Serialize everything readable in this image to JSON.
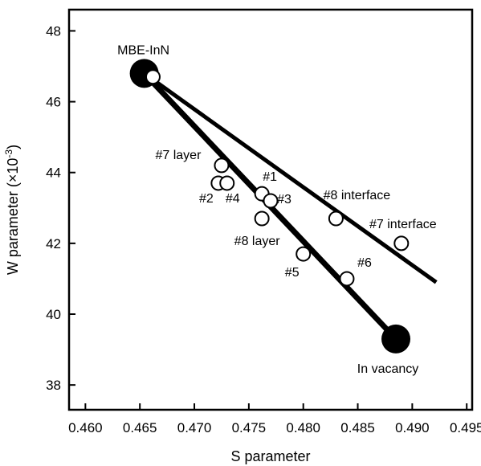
{
  "chart_data": {
    "type": "scatter",
    "xlabel": "S parameter",
    "ylabel": "W parameter (×10",
    "ylabel_exponent": "-3",
    "ylabel_close": ")",
    "xlim": [
      0.4585,
      0.4955
    ],
    "ylim": [
      37.3,
      48.6
    ],
    "xticks": [
      "0.460",
      "0.465",
      "0.470",
      "0.475",
      "0.480",
      "0.485",
      "0.490",
      "0.495"
    ],
    "xtick_values": [
      0.46,
      0.465,
      0.47,
      0.475,
      0.48,
      0.485,
      0.49,
      0.495
    ],
    "yticks": [
      "38",
      "40",
      "42",
      "44",
      "46",
      "48"
    ],
    "ytick_values": [
      38,
      40,
      42,
      44,
      46,
      48
    ],
    "grid": false,
    "reference_points": [
      {
        "label": "MBE-InN",
        "x": 0.4654,
        "y": 46.8
      },
      {
        "label": "In vacancy",
        "x": 0.4885,
        "y": 39.3
      }
    ],
    "samples": [
      {
        "label": "#7 layer",
        "x": 0.4725,
        "y": 44.2
      },
      {
        "label": "#2",
        "x": 0.4722,
        "y": 43.7
      },
      {
        "label": "#4",
        "x": 0.473,
        "y": 43.7
      },
      {
        "label": "#1",
        "x": 0.4762,
        "y": 43.4
      },
      {
        "label": "#3",
        "x": 0.477,
        "y": 43.2
      },
      {
        "label": "#8 layer",
        "x": 0.4762,
        "y": 42.7
      },
      {
        "label": "#5",
        "x": 0.48,
        "y": 41.7
      },
      {
        "label": "#6",
        "x": 0.484,
        "y": 41.0
      },
      {
        "label": "#8 interface",
        "x": 0.483,
        "y": 42.7
      },
      {
        "label": "#7 interface",
        "x": 0.489,
        "y": 42.0
      },
      {
        "label": "",
        "x": 0.4662,
        "y": 46.7
      }
    ],
    "lines": [
      {
        "from": [
          0.4654,
          46.8
        ],
        "to": [
          0.4885,
          39.3
        ]
      },
      {
        "from": [
          0.4654,
          46.8
        ],
        "to": [
          0.4922,
          40.9
        ]
      }
    ]
  }
}
